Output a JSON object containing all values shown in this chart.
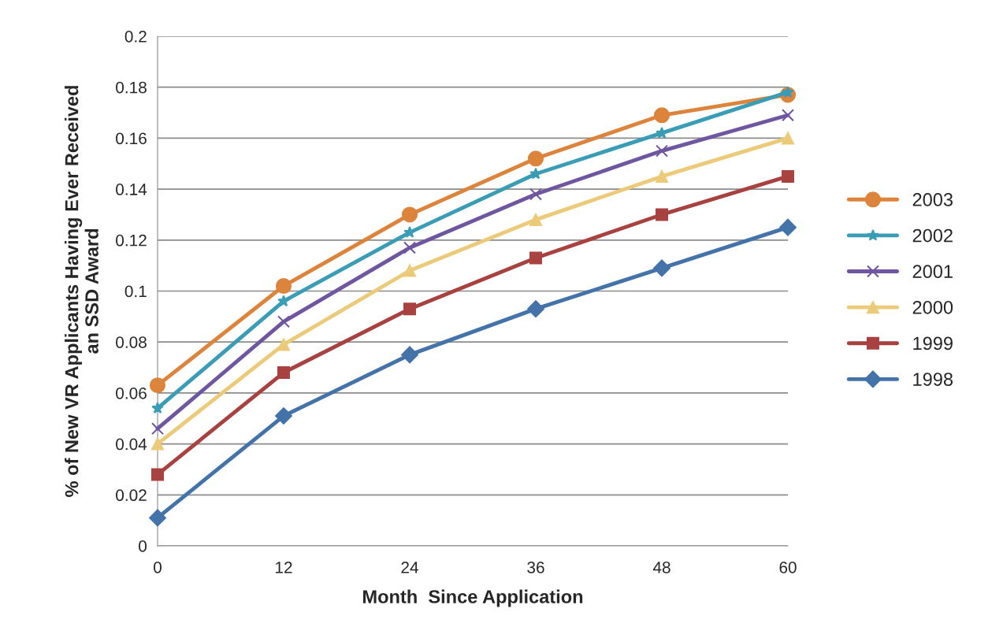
{
  "chart_data": {
    "type": "line",
    "xlabel": "Month  Since Application",
    "ylabel": "% of New VR Applicants Having Ever Received\nan SSD Award",
    "x": [
      0,
      12,
      24,
      36,
      48,
      60
    ],
    "series": [
      {
        "name": "2003",
        "color": "#dd843c",
        "marker": "circle",
        "values": [
          0.063,
          0.102,
          0.13,
          0.152,
          0.169,
          0.177
        ]
      },
      {
        "name": "2002",
        "color": "#3a9db5",
        "marker": "star",
        "values": [
          0.054,
          0.096,
          0.123,
          0.146,
          0.162,
          0.178
        ]
      },
      {
        "name": "2001",
        "color": "#6f56a0",
        "marker": "cross",
        "values": [
          0.046,
          0.088,
          0.117,
          0.138,
          0.155,
          0.169
        ]
      },
      {
        "name": "2000",
        "color": "#ebcb7a",
        "marker": "triangle",
        "values": [
          0.04,
          0.079,
          0.108,
          0.128,
          0.145,
          0.16
        ]
      },
      {
        "name": "1999",
        "color": "#a84240",
        "marker": "square",
        "values": [
          0.028,
          0.068,
          0.093,
          0.113,
          0.13,
          0.145
        ]
      },
      {
        "name": "1998",
        "color": "#4473aa",
        "marker": "diamond",
        "values": [
          0.011,
          0.051,
          0.075,
          0.093,
          0.109,
          0.125
        ]
      }
    ],
    "xlim": [
      0,
      60
    ],
    "xticks": [
      0,
      12,
      24,
      36,
      48,
      60
    ],
    "ylim": [
      0,
      0.2
    ],
    "yticks": [
      0,
      0.02,
      0.04,
      0.06,
      0.08,
      0.1,
      0.12,
      0.14,
      0.16,
      0.18,
      0.2
    ],
    "grid": "y",
    "legend": "right",
    "line_style": "solid"
  }
}
